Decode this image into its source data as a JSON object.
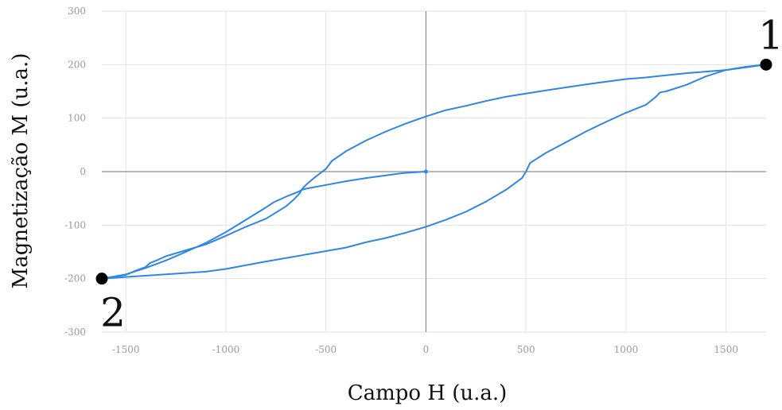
{
  "chart_data": {
    "type": "line",
    "title": "",
    "xlabel": "Campo H (u.a.)",
    "ylabel": "Magnetização M (u.a.)",
    "xlim": [
      -1620,
      1700
    ],
    "ylim": [
      -300,
      300
    ],
    "x_ticks": [
      -1500,
      -1000,
      -500,
      0,
      500,
      1000,
      1500
    ],
    "y_ticks": [
      -300,
      -200,
      -100,
      0,
      100,
      200,
      300
    ],
    "grid": true,
    "colors": {
      "series": "#2f86e6",
      "grid": "#e3e3e3",
      "zero_axis": "#8c8c8c",
      "marker": "#000000"
    },
    "series": [
      {
        "name": "",
        "segments": [
          {
            "id": "initial",
            "points": [
              [
                0,
                0
              ],
              [
                -50,
                -1
              ],
              [
                -120,
                -3
              ],
              [
                -200,
                -7
              ],
              [
                -300,
                -12
              ],
              [
                -400,
                -18
              ],
              [
                -500,
                -25
              ],
              [
                -600,
                -32
              ],
              [
                -620,
                -34
              ],
              [
                -640,
                -38
              ],
              [
                -700,
                -47
              ],
              [
                -760,
                -57
              ],
              [
                -800,
                -67
              ],
              [
                -900,
                -90
              ],
              [
                -1000,
                -113
              ],
              [
                -1100,
                -133
              ],
              [
                -1200,
                -150
              ],
              [
                -1300,
                -166
              ],
              [
                -1400,
                -180
              ],
              [
                -1500,
                -192
              ],
              [
                -1620,
                -200
              ]
            ]
          },
          {
            "id": "ascending",
            "points": [
              [
                -1620,
                -200
              ],
              [
                -1500,
                -197
              ],
              [
                -1300,
                -192
              ],
              [
                -1100,
                -187
              ],
              [
                -1000,
                -182
              ],
              [
                -800,
                -168
              ],
              [
                -600,
                -155
              ],
              [
                -400,
                -142
              ],
              [
                -300,
                -132
              ],
              [
                -200,
                -124
              ],
              [
                -100,
                -114
              ],
              [
                0,
                -103
              ],
              [
                100,
                -90
              ],
              [
                200,
                -75
              ],
              [
                300,
                -56
              ],
              [
                400,
                -34
              ],
              [
                480,
                -12
              ],
              [
                500,
                0
              ],
              [
                520,
                16
              ],
              [
                600,
                35
              ],
              [
                700,
                55
              ],
              [
                800,
                75
              ],
              [
                900,
                93
              ],
              [
                1000,
                110
              ],
              [
                1100,
                125
              ],
              [
                1150,
                140
              ],
              [
                1170,
                148
              ],
              [
                1200,
                150
              ],
              [
                1300,
                162
              ],
              [
                1400,
                178
              ],
              [
                1500,
                190
              ],
              [
                1600,
                196
              ],
              [
                1700,
                200
              ]
            ]
          },
          {
            "id": "descending",
            "points": [
              [
                1700,
                200
              ],
              [
                1600,
                195
              ],
              [
                1500,
                190
              ],
              [
                1400,
                187
              ],
              [
                1300,
                184
              ],
              [
                1200,
                180
              ],
              [
                1100,
                176
              ],
              [
                1000,
                173
              ],
              [
                800,
                163
              ],
              [
                600,
                152
              ],
              [
                400,
                140
              ],
              [
                300,
                132
              ],
              [
                200,
                123
              ],
              [
                100,
                115
              ],
              [
                0,
                103
              ],
              [
                -100,
                90
              ],
              [
                -200,
                75
              ],
              [
                -300,
                58
              ],
              [
                -400,
                38
              ],
              [
                -470,
                20
              ],
              [
                -500,
                5
              ],
              [
                -560,
                -12
              ],
              [
                -600,
                -25
              ],
              [
                -620,
                -33
              ],
              [
                -630,
                -40
              ],
              [
                -660,
                -52
              ],
              [
                -700,
                -65
              ],
              [
                -800,
                -88
              ],
              [
                -900,
                -103
              ],
              [
                -1000,
                -120
              ],
              [
                -1100,
                -136
              ],
              [
                -1200,
                -147
              ],
              [
                -1300,
                -158
              ],
              [
                -1340,
                -165
              ],
              [
                -1380,
                -171
              ],
              [
                -1400,
                -178
              ],
              [
                -1450,
                -185
              ],
              [
                -1500,
                -193
              ],
              [
                -1620,
                -200
              ]
            ]
          }
        ]
      }
    ],
    "markers": [
      {
        "label": "1",
        "x": 1700,
        "y": 200
      },
      {
        "label": "2",
        "x": -1620,
        "y": -200
      }
    ]
  }
}
